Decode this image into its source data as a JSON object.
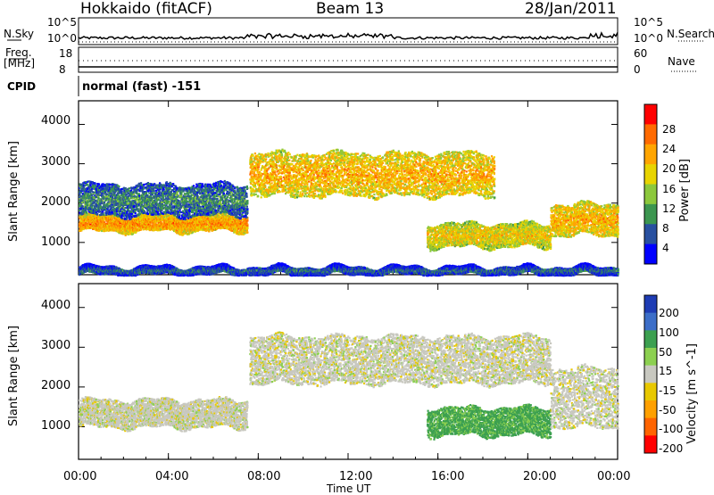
{
  "header": {
    "station": "Hokkaido (fitACF)",
    "beam": "Beam 13",
    "date": "28/Jan/2011"
  },
  "noise_panel": {
    "left_label": "N.Sky",
    "right_label": "N.Search",
    "left_ticks": [
      "10^5",
      "10^0"
    ],
    "right_ticks": [
      "10^5",
      "10^0"
    ]
  },
  "freq_panel": {
    "left_label_line1": "Freq.",
    "left_label_line2": "[MHz]",
    "right_label": "Nave",
    "left_ticks": [
      "18",
      "8"
    ],
    "right_ticks": [
      "60",
      "0"
    ]
  },
  "cpid": {
    "label": "CPID",
    "value": "normal (fast) -151"
  },
  "chart_data": [
    {
      "type": "heatmap",
      "quantity": "Power",
      "ylabel": "Slant Range [km]",
      "ylim": [
        180,
        4600
      ],
      "yticks": [
        "1000",
        "2000",
        "3000",
        "4000"
      ],
      "xlim": [
        "00:00",
        "24:00"
      ],
      "colorbar": {
        "label": "Power [dB]",
        "ticks": [
          "28",
          "24",
          "20",
          "16",
          "12",
          "8",
          "4"
        ],
        "colors": [
          "#ff0000",
          "#ff6a00",
          "#ffa500",
          "#e8d400",
          "#8cc83c",
          "#3c9650",
          "#2850a0",
          "#0000ff"
        ]
      },
      "scatter_bands": [
        {
          "t_start": 0.0,
          "t_end": 7.5,
          "range_km": [
            1300,
            1700
          ],
          "power_db": 24
        },
        {
          "t_start": 0.0,
          "t_end": 7.5,
          "range_km": [
            1700,
            2500
          ],
          "power_db": 10
        },
        {
          "t_start": 7.6,
          "t_end": 18.5,
          "range_km": [
            2200,
            3300
          ],
          "power_db": 22
        },
        {
          "t_start": 15.5,
          "t_end": 21.0,
          "range_km": [
            900,
            1500
          ],
          "power_db": 20
        },
        {
          "t_start": 21.0,
          "t_end": 24.0,
          "range_km": [
            1200,
            2000
          ],
          "power_db": 22
        },
        {
          "t_start": 0.0,
          "t_end": 24.0,
          "range_km": [
            200,
            400
          ],
          "power_db": 8
        }
      ]
    },
    {
      "type": "heatmap",
      "quantity": "Velocity",
      "ylabel": "Slant Range [km]",
      "ylim": [
        180,
        4600
      ],
      "yticks": [
        "1000",
        "2000",
        "3000",
        "4000"
      ],
      "xlim": [
        "00:00",
        "24:00"
      ],
      "colorbar": {
        "label": "Velocity [m s^-1]",
        "ticks": [
          "200",
          "100",
          "50",
          "15",
          "-15",
          "-50",
          "-100",
          "-200"
        ],
        "colors": [
          "#1e3cb4",
          "#3c6ec8",
          "#3ca050",
          "#8cd050",
          "#c8c8c0",
          "#e8c800",
          "#ffa000",
          "#ff6400",
          "#ff0000"
        ]
      },
      "scatter_bands": [
        {
          "t_start": 0.0,
          "t_end": 7.5,
          "range_km": [
            1000,
            1700
          ],
          "velocity_ms": 0
        },
        {
          "t_start": 7.6,
          "t_end": 21.0,
          "range_km": [
            2100,
            3300
          ],
          "velocity_ms": 0
        },
        {
          "t_start": 15.5,
          "t_end": 21.0,
          "range_km": [
            800,
            1500
          ],
          "velocity_ms": 60
        },
        {
          "t_start": 21.0,
          "t_end": 24.0,
          "range_km": [
            1000,
            2500
          ],
          "velocity_ms": 0
        }
      ]
    }
  ],
  "xaxis": {
    "ticks": [
      "00:00",
      "04:00",
      "08:00",
      "12:00",
      "16:00",
      "20:00",
      "00:00"
    ],
    "label": "Time UT"
  }
}
